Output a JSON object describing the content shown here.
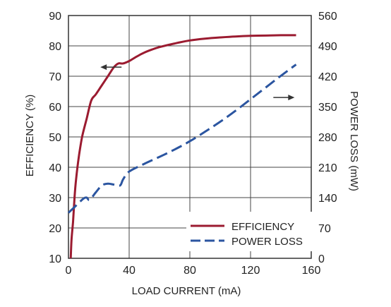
{
  "chart_data": {
    "type": "line",
    "title": "",
    "xlabel": "LOAD CURRENT (mA)",
    "ylabel_left": "EFFICIENCY (%)",
    "ylabel_right": "POWER LOSS (mW)",
    "xlim": [
      0,
      160
    ],
    "ylim_left": [
      10,
      90
    ],
    "ylim_right": [
      0,
      560
    ],
    "x_ticks": [
      0,
      40,
      80,
      120,
      160
    ],
    "y_left_ticks": [
      10,
      20,
      30,
      40,
      50,
      60,
      70,
      80,
      90
    ],
    "y_right_ticks": [
      0,
      70,
      140,
      210,
      280,
      350,
      420,
      490,
      560
    ],
    "grid": true,
    "legend_position": "lower-right",
    "series": [
      {
        "name": "EFFICIENCY",
        "axis": "left",
        "color": "#9b1b30",
        "style": "solid",
        "x": [
          1.5,
          2,
          3,
          4,
          5,
          7,
          9,
          12,
          15,
          18,
          22,
          26,
          30,
          33,
          36,
          40,
          45,
          50,
          55,
          60,
          70,
          80,
          90,
          100,
          110,
          120,
          130,
          140,
          150
        ],
        "y": [
          10,
          16,
          22,
          30,
          36,
          44,
          50,
          56,
          62,
          64,
          67,
          70,
          73,
          74.2,
          74.2,
          75,
          76.5,
          77.8,
          78.8,
          79.6,
          80.8,
          81.8,
          82.4,
          82.8,
          83.1,
          83.3,
          83.4,
          83.5,
          83.5
        ]
      },
      {
        "name": "POWER LOSS",
        "axis": "right",
        "color": "#2b55a0",
        "style": "dashed",
        "x": [
          0,
          3,
          6,
          10,
          12,
          14,
          18,
          22,
          26,
          30,
          34,
          36,
          40,
          50,
          60,
          70,
          80,
          90,
          100,
          110,
          120,
          130,
          140,
          150
        ],
        "y": [
          105,
          115,
          125,
          138,
          140,
          135,
          152,
          168,
          172,
          170,
          168,
          182,
          200,
          218,
          234,
          251,
          270,
          292,
          315,
          340,
          367,
          394,
          421,
          447
        ]
      }
    ],
    "annotations": [
      {
        "type": "arrow",
        "direction": "left",
        "x": 28,
        "y": 73,
        "axis": "left"
      },
      {
        "type": "arrow",
        "direction": "right",
        "x": 142,
        "y": 63,
        "axis": "left"
      }
    ]
  },
  "x_tick_labels": [
    "0",
    "40",
    "80",
    "120",
    "160"
  ],
  "y_left_tick_labels": [
    "10",
    "20",
    "30",
    "40",
    "50",
    "60",
    "70",
    "80",
    "90"
  ],
  "y_right_tick_labels": [
    "0",
    "70",
    "140",
    "210",
    "280",
    "350",
    "420",
    "490",
    "560"
  ],
  "legend": {
    "efficiency_label": "EFFICIENCY",
    "power_loss_label": "POWER LOSS"
  },
  "colors": {
    "efficiency": "#9b1b30",
    "power_loss": "#2b55a0",
    "grid": "#444444",
    "frame": "#333333"
  }
}
